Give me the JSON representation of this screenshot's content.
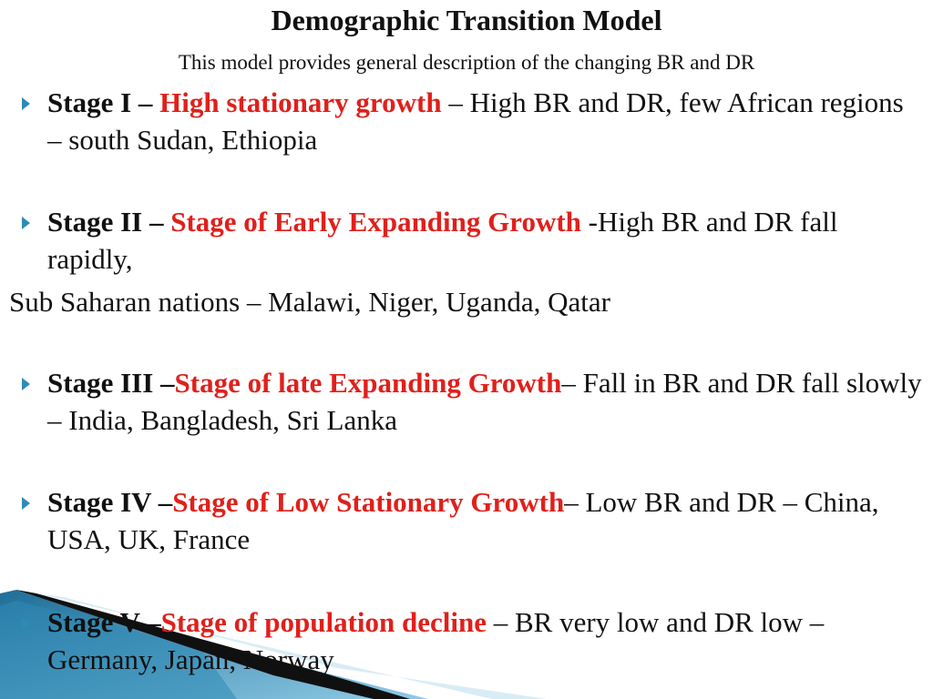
{
  "slide": {
    "title": "Demographic Transition Model",
    "subtitle": "This model provides general description of the changing BR and DR",
    "accent_color": "#e0201b",
    "bullet_color": "#2e8bb6",
    "stages": [
      {
        "label": "Stage I – ",
        "name": "High stationary growth",
        "description": "  – High BR and DR, few African regions – south Sudan, Ethiopia"
      },
      {
        "label": "Stage II – ",
        "name": "Stage of Early Expanding Growth",
        "description": " -High BR and DR fall rapidly,"
      },
      {
        "label": "Stage III –",
        "name": "Stage of late Expanding Growth",
        "description": "– Fall in BR and DR fall slowly – India, Bangladesh, Sri Lanka"
      },
      {
        "label": "Stage IV –",
        "name": "Stage of Low Stationary Growth",
        "description": "– Low BR and DR – China, USA, UK, France"
      },
      {
        "label": "Stage V –",
        "name": "Stage of population decline",
        "description": " – BR very low and DR low – Germany, Japan, Norway"
      }
    ],
    "stage2_continuation": "Sub Saharan nations – Malawi, Niger, Uganda, Qatar"
  }
}
